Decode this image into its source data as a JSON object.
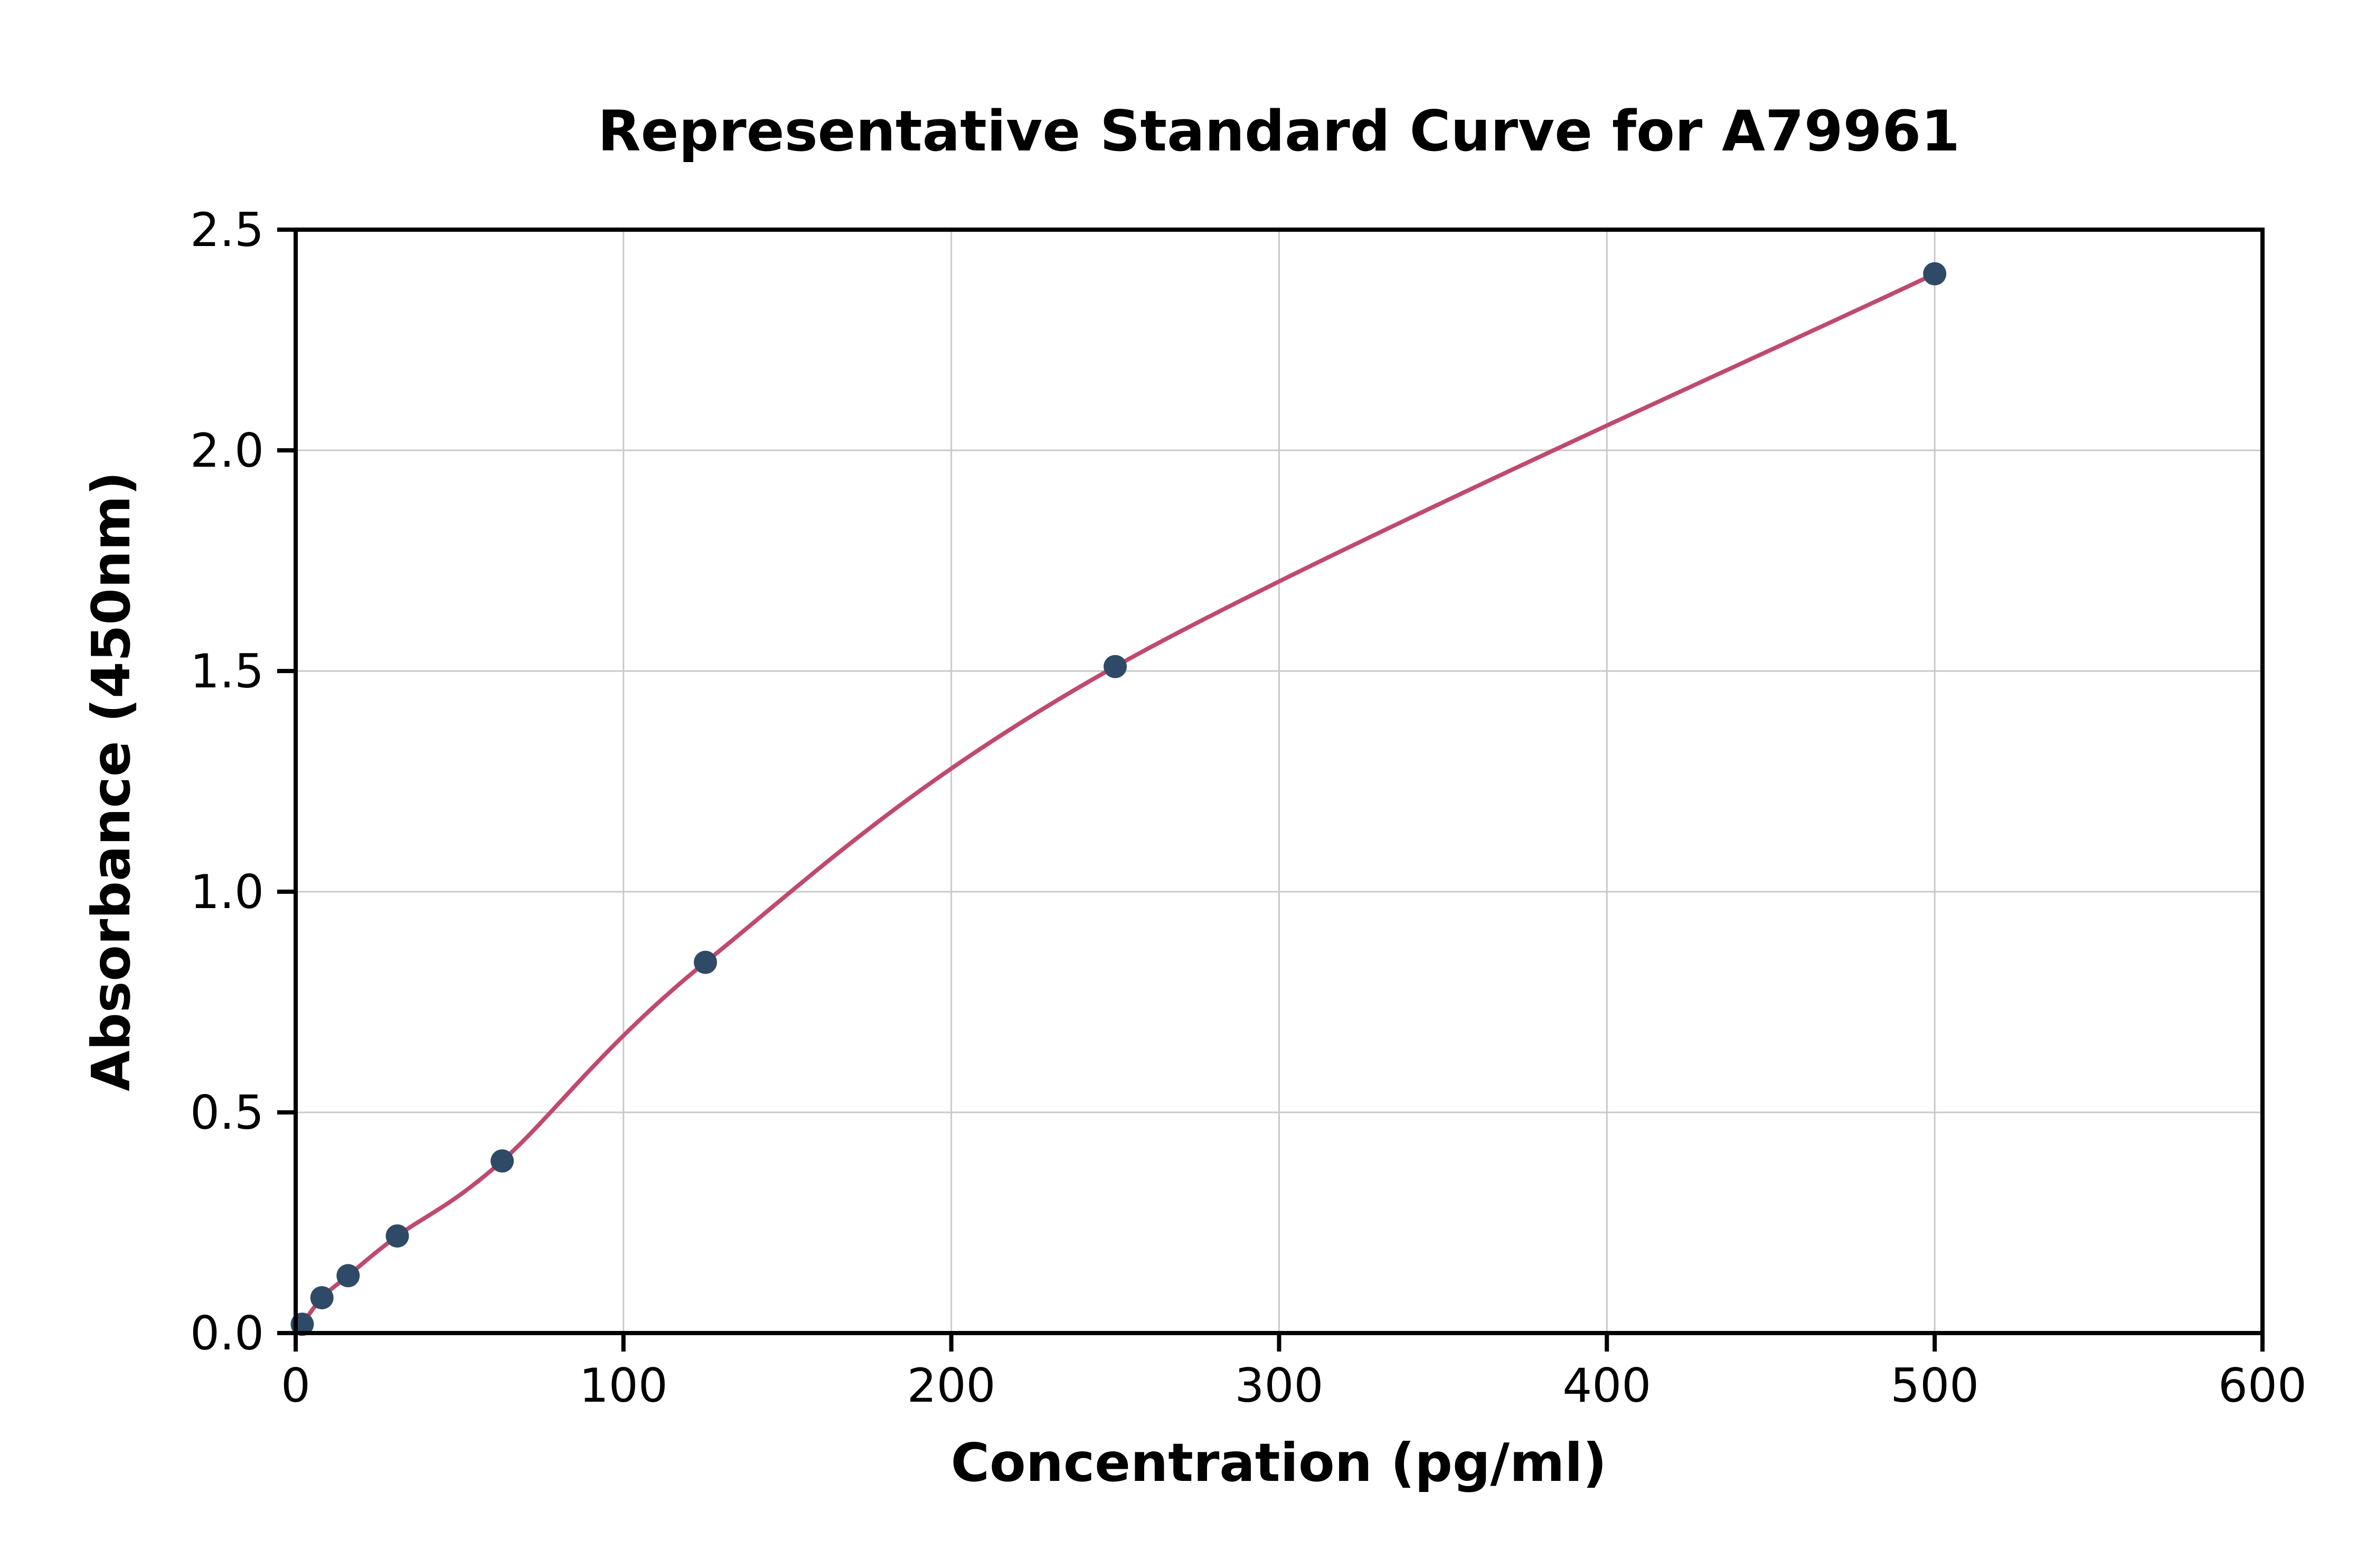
{
  "chart_data": {
    "type": "scatter",
    "title": "Representative Standard Curve for A79961",
    "xlabel": "Concentration (pg/ml)",
    "ylabel": "Absorbance (450nm)",
    "xlim": [
      0,
      600
    ],
    "ylim": [
      0,
      2.5
    ],
    "xticks": [
      0,
      100,
      200,
      300,
      400,
      500,
      600
    ],
    "xtick_labels": [
      "0",
      "100",
      "200",
      "300",
      "400",
      "500",
      "600"
    ],
    "yticks": [
      0,
      0.5,
      1.0,
      1.5,
      2.0,
      2.5
    ],
    "ytick_labels": [
      "0.0",
      "0.5",
      "1.0",
      "1.5",
      "2.0",
      "2.5"
    ],
    "grid": true,
    "legend_position": "none",
    "series": [
      {
        "name": "standard-curve-fit",
        "points": [
          {
            "x": 2,
            "y": 0.02
          },
          {
            "x": 8,
            "y": 0.08
          },
          {
            "x": 16,
            "y": 0.13
          },
          {
            "x": 31,
            "y": 0.22
          },
          {
            "x": 63,
            "y": 0.39
          },
          {
            "x": 125,
            "y": 0.84
          },
          {
            "x": 250,
            "y": 1.51
          },
          {
            "x": 500,
            "y": 2.4
          }
        ]
      }
    ],
    "colors": {
      "marker": "#2e4a66",
      "fit_line": "#c04a6e",
      "grid": "#c9c9c9",
      "axis": "#000000",
      "background": "#ffffff"
    }
  }
}
